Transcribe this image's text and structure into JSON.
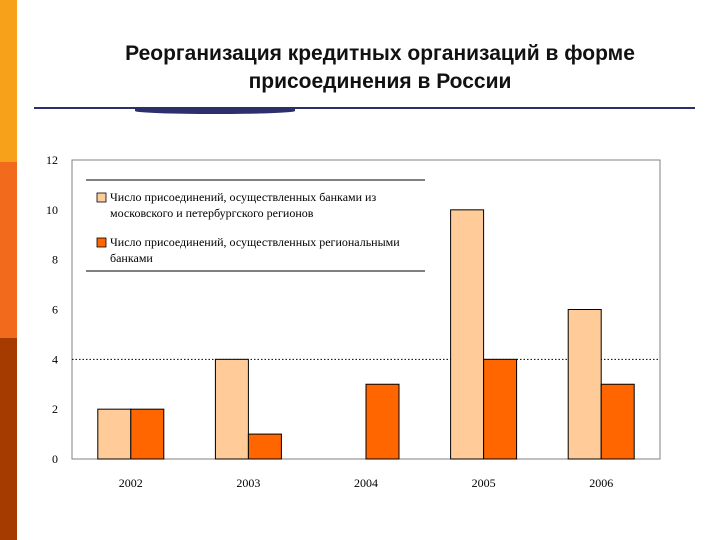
{
  "slide": {
    "title_line1": "Реорганизация кредитных организаций в форме",
    "title_line2": "присоединения в России",
    "colors": {
      "strip_top": "#F7A11A",
      "strip_middle": "#F26B1D",
      "strip_bottom": "#A63B00",
      "rule": "#2B2F6B"
    }
  },
  "chart_data": {
    "type": "bar",
    "categories": [
      "2002",
      "2003",
      "2004",
      "2005",
      "2006"
    ],
    "series": [
      {
        "name": "Число присоединений, осуществленных банками из московского и петербургского регионов",
        "values": [
          2,
          4,
          0,
          10,
          6
        ],
        "color": "#FFCC99"
      },
      {
        "name": "Число присоединений, осуществленных региональными банками",
        "values": [
          2,
          1,
          3,
          4,
          3
        ],
        "color": "#FF6600"
      }
    ],
    "ylim": [
      0,
      12
    ],
    "yticks": [
      "0",
      "2",
      "4",
      "6",
      "8",
      "10",
      "12"
    ],
    "reference_line": 4,
    "grid": false,
    "legend_position": "top-left",
    "legend_lines": [
      [
        "Число присоединений, осуществленных банками из",
        "московского и петербургского регионов"
      ],
      [
        "Число присоединений, осуществленных региональными",
        "банками"
      ]
    ]
  }
}
